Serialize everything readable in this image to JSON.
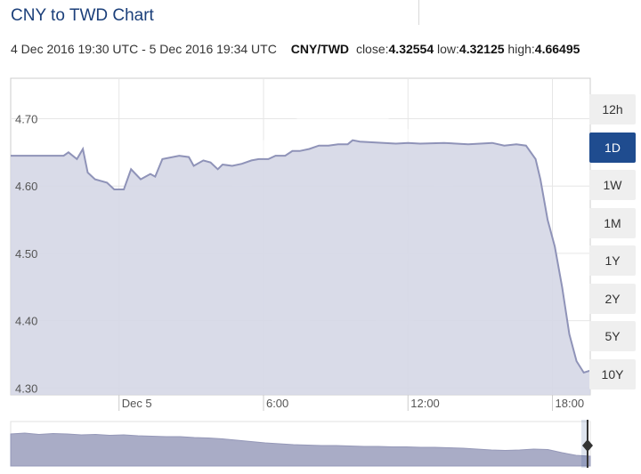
{
  "header": {
    "title": "CNY to TWD Chart",
    "date_range": "4 Dec 2016 19:30 UTC - 5 Dec 2016 19:34 UTC",
    "pair": "CNY/TWD",
    "close_label": "close:",
    "close_value": "4.32554",
    "low_label": "low:",
    "low_value": "4.32125",
    "high_label": "high:",
    "high_value": "4.66495"
  },
  "timeframes": [
    {
      "label": "12h",
      "active": false
    },
    {
      "label": "1D",
      "active": true
    },
    {
      "label": "1W",
      "active": false
    },
    {
      "label": "1M",
      "active": false
    },
    {
      "label": "1Y",
      "active": false
    },
    {
      "label": "2Y",
      "active": false
    },
    {
      "label": "5Y",
      "active": false
    },
    {
      "label": "10Y",
      "active": false
    }
  ],
  "colors": {
    "title": "#1b3f7a",
    "line": "#8f93b8",
    "area": "#d5d7e6",
    "active_button": "#1f4c8f",
    "navigator_fill": "#a9acc6"
  },
  "chart_data": {
    "type": "area",
    "x_unit": "hours since 4 Dec 2016 19:30 UTC",
    "xlim": [
      0,
      24.07
    ],
    "ylim": [
      4.29,
      4.76
    ],
    "y_ticks": [
      4.3,
      4.4,
      4.5,
      4.6,
      4.7
    ],
    "y_tick_labels": [
      "4.30",
      "4.40",
      "4.50",
      "4.60",
      "4.70"
    ],
    "x_ticks": [
      4.5,
      10.5,
      16.5,
      22.5
    ],
    "x_tick_labels": [
      "Dec 5",
      "6:00",
      "12:00",
      "18:00"
    ],
    "grid": true,
    "legend": "none",
    "series": [
      {
        "x": [
          0,
          2.2,
          2.4,
          2.75,
          3.0,
          3.2,
          3.5,
          4.0,
          4.3,
          4.7,
          5.0,
          5.4,
          5.8,
          6.0,
          6.3,
          7.0,
          7.4,
          7.6,
          8.0,
          8.3,
          8.6,
          8.8,
          9.2,
          9.6,
          10.0,
          10.3,
          10.7,
          11.0,
          11.4,
          11.7,
          12.0,
          12.4,
          12.8,
          13.2,
          13.6,
          14.0,
          14.2,
          14.5,
          15.0,
          15.5,
          16.0,
          16.5,
          17.0,
          18.0,
          19.0,
          20.0,
          20.5,
          21.0,
          21.4,
          21.8,
          22.0,
          22.3,
          22.6,
          22.9,
          23.2,
          23.5,
          23.8,
          24.07
        ],
        "values": [
          4.645,
          4.645,
          4.65,
          4.64,
          4.655,
          4.62,
          4.61,
          4.605,
          4.595,
          4.595,
          4.625,
          4.61,
          4.618,
          4.614,
          4.64,
          4.645,
          4.643,
          4.63,
          4.638,
          4.635,
          4.625,
          4.632,
          4.63,
          4.633,
          4.638,
          4.64,
          4.64,
          4.645,
          4.645,
          4.652,
          4.652,
          4.655,
          4.66,
          4.66,
          4.662,
          4.662,
          4.668,
          4.666,
          4.665,
          4.664,
          4.663,
          4.664,
          4.663,
          4.664,
          4.662,
          4.664,
          4.66,
          4.662,
          4.66,
          4.64,
          4.61,
          4.55,
          4.51,
          4.45,
          4.38,
          4.34,
          4.323,
          4.326
        ]
      }
    ],
    "navigator": {
      "type": "area",
      "values": [
        0.72,
        0.74,
        0.71,
        0.73,
        0.72,
        0.7,
        0.71,
        0.69,
        0.7,
        0.68,
        0.67,
        0.66,
        0.66,
        0.64,
        0.63,
        0.61,
        0.58,
        0.55,
        0.52,
        0.5,
        0.48,
        0.47,
        0.46,
        0.46,
        0.45,
        0.44,
        0.44,
        0.43,
        0.43,
        0.42,
        0.42,
        0.41,
        0.4,
        0.38,
        0.36,
        0.35,
        0.36,
        0.38,
        0.37,
        0.3,
        0.24,
        0.22
      ]
    }
  }
}
